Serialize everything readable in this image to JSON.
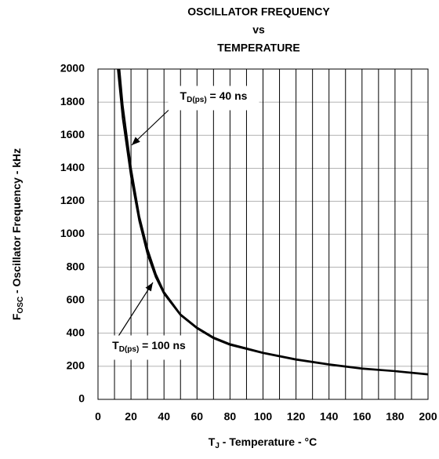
{
  "chart_data": {
    "type": "line",
    "title": [
      "OSCILLATOR FREQUENCY",
      "vs",
      "TEMPERATURE"
    ],
    "x_label": {
      "main": "T",
      "sub": "J",
      "rest": " - Temperature - °C"
    },
    "y_label": {
      "main": "F",
      "sub": "OSC",
      "rest": " - Oscillator Frequency - kHz"
    },
    "xlim": [
      0,
      200
    ],
    "ylim": [
      0,
      2000
    ],
    "xticks": [
      0,
      20,
      40,
      60,
      80,
      100,
      120,
      140,
      160,
      180,
      200
    ],
    "x_minor_grid": [
      10,
      30,
      50,
      70,
      90,
      110,
      130,
      150,
      170,
      190
    ],
    "yticks": [
      0,
      200,
      400,
      600,
      800,
      1000,
      1200,
      1400,
      1600,
      1800,
      2000
    ],
    "grid": true,
    "series": [
      {
        "name": {
          "main": "T",
          "sub": "D(ps)",
          "rest": " = 40 ns"
        },
        "color": "#000000",
        "x": [
          12,
          15,
          20,
          25,
          30,
          35,
          40,
          50,
          60,
          70,
          80,
          100,
          120,
          140,
          160,
          180,
          200
        ],
        "values": [
          2000,
          1700,
          1350,
          1080,
          880,
          740,
          640,
          510,
          430,
          370,
          330,
          280,
          240,
          210,
          185,
          170,
          150
        ]
      },
      {
        "name": {
          "main": "T",
          "sub": "D(ps)",
          "rest": " = 100 ns"
        },
        "color": "#000000",
        "x": [
          13,
          15,
          20,
          25,
          30,
          35,
          40,
          50,
          60,
          70,
          80,
          100,
          120,
          140,
          160,
          180,
          200
        ],
        "values": [
          2000,
          1780,
          1400,
          1110,
          910,
          760,
          650,
          515,
          435,
          375,
          335,
          283,
          243,
          213,
          188,
          172,
          153
        ]
      }
    ]
  }
}
